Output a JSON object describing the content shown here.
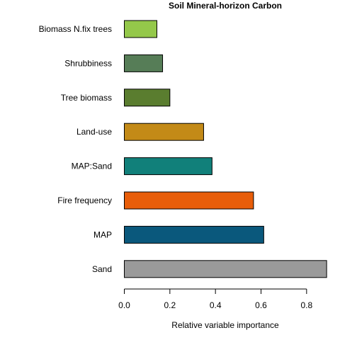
{
  "chart_data": {
    "type": "bar",
    "orientation": "horizontal",
    "title": "Soil Mineral-horizon Carbon",
    "xlabel": "Relative variable importance",
    "ylabel": "",
    "xlim": [
      0,
      0.9
    ],
    "xticks": [
      "0.0",
      "0.2",
      "0.4",
      "0.6",
      "0.8"
    ],
    "grid": false,
    "categories": [
      "Biomass N.fix trees",
      "Shrubbiness",
      "Tree biomass",
      "Land-use",
      "MAP:Sand",
      "Fire frequency",
      "MAP",
      "Sand"
    ],
    "values": [
      0.143,
      0.168,
      0.2,
      0.348,
      0.385,
      0.567,
      0.612,
      0.888
    ],
    "colors": [
      "#94c84a",
      "#567d57",
      "#5a7d2f",
      "#c38a17",
      "#11807a",
      "#e85d09",
      "#0a587c",
      "#9a9a9a"
    ]
  }
}
